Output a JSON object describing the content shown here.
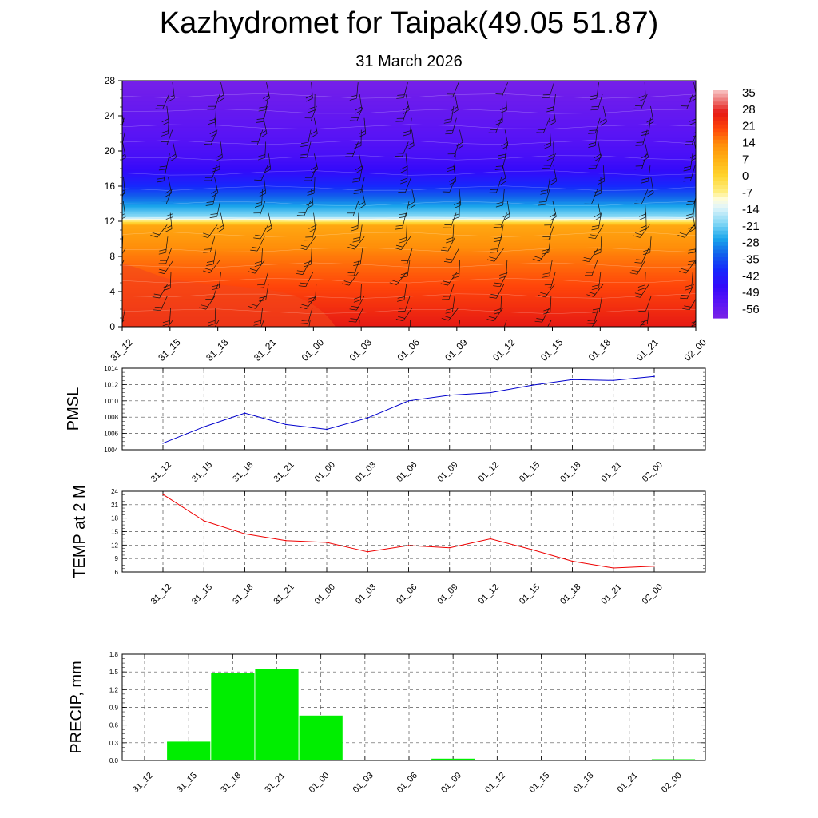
{
  "title": "Kazhydromet for Taipak(49.05 51.87)",
  "subtitle": "31 March 2026",
  "chart_data": [
    {
      "type": "heatmap",
      "x_categories": [
        "31_12",
        "31_15",
        "31_18",
        "31_21",
        "01_00",
        "01_03",
        "01_06",
        "01_09",
        "01_12",
        "01_15",
        "01_18",
        "01_21",
        "02_00"
      ],
      "y_ticks": [
        0,
        4,
        8,
        12,
        16,
        20,
        24,
        28
      ],
      "ylim": [
        0,
        28
      ],
      "colorbar": {
        "labels": [
          "35",
          "28",
          "21",
          "14",
          "7",
          "0",
          "-7",
          "-14",
          "-21",
          "-28",
          "-35",
          "-42",
          "-49",
          "-56"
        ],
        "range": [
          -63,
          38
        ]
      },
      "overlay": "wind barbs",
      "temperature_profile": {
        "levels": [
          0,
          2,
          4,
          6,
          8,
          10,
          11.5,
          12.5,
          14,
          16,
          17.5,
          19,
          21,
          24,
          28
        ],
        "values": [
          28,
          25,
          22,
          19,
          16,
          12,
          9,
          -20,
          -30,
          -42,
          -48,
          -52,
          -55,
          -58,
          -62
        ]
      }
    },
    {
      "type": "line",
      "ylabel": "PMSL",
      "x": [
        "31_12",
        "31_15",
        "31_18",
        "31_21",
        "01_00",
        "01_03",
        "01_06",
        "01_09",
        "01_12",
        "01_15",
        "01_18",
        "01_21",
        "02_00"
      ],
      "values": [
        1004.8,
        1006.8,
        1008.5,
        1007.1,
        1006.5,
        1007.9,
        1010.0,
        1010.7,
        1011.0,
        1011.9,
        1012.6,
        1012.5,
        1013.0
      ],
      "ylim": [
        1004,
        1014
      ],
      "y_ticks": [
        1004,
        1006,
        1008,
        1010,
        1012,
        1014
      ],
      "color": "#0000cc",
      "grid": true
    },
    {
      "type": "line",
      "ylabel": "TEMP at 2 M",
      "x": [
        "31_12",
        "31_15",
        "31_18",
        "31_21",
        "01_00",
        "01_03",
        "01_06",
        "01_09",
        "01_12",
        "01_15",
        "01_18",
        "01_21",
        "02_00"
      ],
      "values": [
        23.3,
        17.4,
        14.5,
        13.0,
        12.6,
        10.5,
        11.9,
        11.4,
        13.4,
        11.0,
        8.4,
        6.9,
        7.3
      ],
      "ylim": [
        6,
        24
      ],
      "y_ticks": [
        6,
        9,
        12,
        15,
        18,
        21,
        24
      ],
      "color": "#ee0000",
      "grid": true
    },
    {
      "type": "bar",
      "ylabel": "PRECIP, mm",
      "categories": [
        "31_12",
        "31_15",
        "31_18",
        "31_21",
        "01_00",
        "01_03",
        "01_06",
        "01_09",
        "01_12",
        "01_15",
        "01_18",
        "01_21",
        "02_00"
      ],
      "values": [
        0,
        0.32,
        1.48,
        1.55,
        0.76,
        0,
        0,
        0.03,
        0,
        0,
        0,
        0,
        0.02
      ],
      "ylim": [
        0,
        1.8
      ],
      "y_ticks": [
        "0.0",
        "0.3",
        "0.6",
        "0.9",
        "1.2",
        "1.5",
        "1.8"
      ],
      "color": "#00ee00",
      "grid": true
    }
  ]
}
